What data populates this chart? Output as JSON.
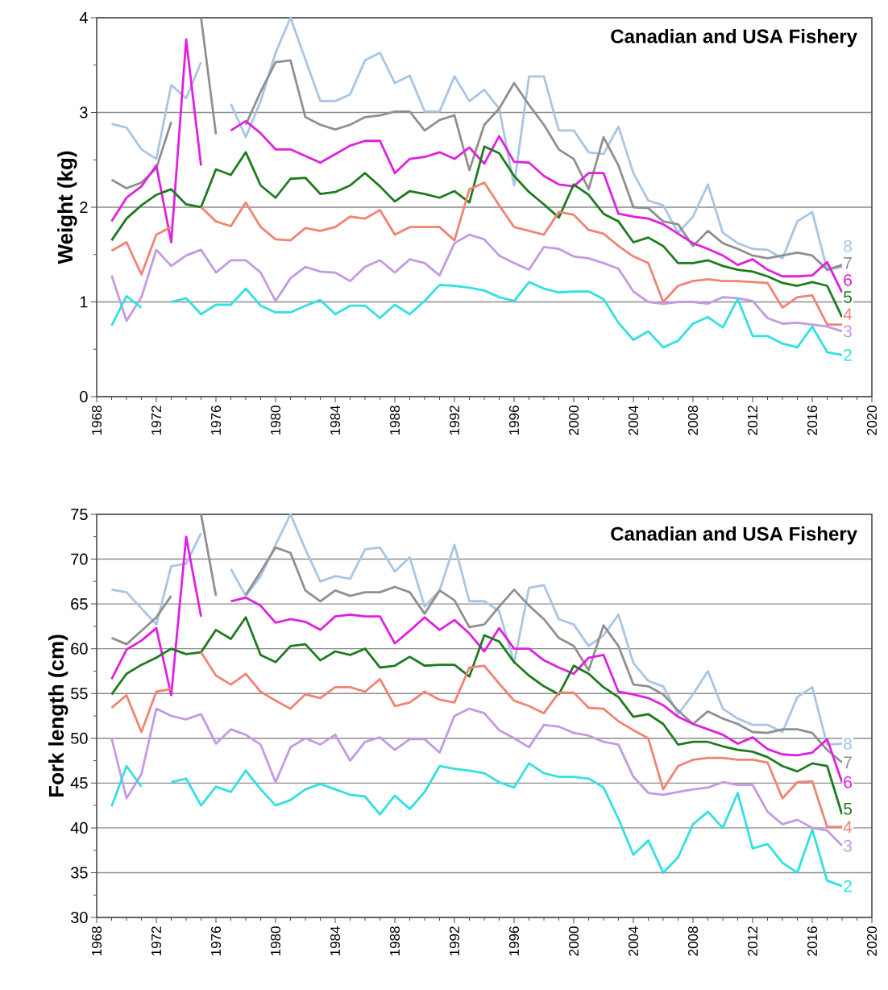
{
  "chart_data": [
    {
      "type": "line",
      "title": "Canadian and USA Fishery",
      "ylabel": "Weight  (kg)",
      "x": [
        1969,
        1970,
        1971,
        1972,
        1973,
        1974,
        1975,
        1976,
        1977,
        1978,
        1979,
        1980,
        1981,
        1982,
        1983,
        1984,
        1985,
        1986,
        1987,
        1988,
        1989,
        1990,
        1991,
        1992,
        1993,
        1994,
        1995,
        1996,
        1997,
        1998,
        1999,
        2000,
        2001,
        2002,
        2003,
        2004,
        2005,
        2006,
        2007,
        2008,
        2009,
        2010,
        2011,
        2012,
        2013,
        2014,
        2015,
        2016,
        2017,
        2018
      ],
      "xlim": [
        1968,
        2020
      ],
      "xticks": [
        1968,
        1972,
        1976,
        1980,
        1984,
        1988,
        1992,
        1996,
        2000,
        2004,
        2008,
        2012,
        2016,
        2020
      ],
      "ylim": [
        0,
        4
      ],
      "yticks": [
        0,
        1,
        2,
        3,
        4
      ],
      "grid": "y",
      "series": [
        {
          "name": "2",
          "color": "#33e0e0",
          "values": [
            0.75,
            1.06,
            0.94,
            null,
            1.0,
            1.04,
            0.87,
            0.97,
            0.97,
            1.14,
            0.96,
            0.89,
            0.89,
            0.96,
            1.02,
            0.87,
            0.96,
            0.96,
            0.83,
            0.97,
            0.87,
            1.01,
            1.18,
            1.17,
            1.15,
            1.12,
            1.05,
            1.01,
            1.21,
            1.14,
            1.1,
            1.11,
            1.11,
            1.03,
            0.78,
            0.6,
            0.69,
            0.52,
            0.59,
            0.77,
            0.84,
            0.73,
            1.03,
            0.64,
            0.64,
            0.56,
            0.52,
            0.74,
            0.47,
            0.44
          ]
        },
        {
          "name": "3",
          "color": "#c49ae0",
          "values": [
            1.28,
            0.8,
            1.05,
            1.55,
            1.38,
            1.49,
            1.55,
            1.31,
            1.44,
            1.44,
            1.31,
            1.01,
            1.25,
            1.37,
            1.32,
            1.31,
            1.22,
            1.37,
            1.44,
            1.31,
            1.45,
            1.41,
            1.28,
            1.62,
            1.71,
            1.66,
            1.49,
            1.41,
            1.34,
            1.58,
            1.56,
            1.48,
            1.46,
            1.41,
            1.35,
            1.11,
            1.0,
            0.98,
            1.0,
            1.0,
            0.98,
            1.05,
            1.04,
            1.01,
            0.83,
            0.77,
            0.78,
            0.76,
            0.74,
            0.69
          ]
        },
        {
          "name": "4",
          "color": "#f08474",
          "values": [
            1.54,
            1.63,
            1.29,
            1.71,
            1.79,
            null,
            2.0,
            1.85,
            1.8,
            2.05,
            1.79,
            1.66,
            1.65,
            1.78,
            1.75,
            1.79,
            1.9,
            1.88,
            1.97,
            1.71,
            1.79,
            1.79,
            1.79,
            1.65,
            2.19,
            2.26,
            2.02,
            1.79,
            1.75,
            1.71,
            1.95,
            1.92,
            1.76,
            1.72,
            1.59,
            1.48,
            1.41,
            1.0,
            1.17,
            1.22,
            1.24,
            1.22,
            1.22,
            1.21,
            1.2,
            0.94,
            1.05,
            1.07,
            0.76,
            0.76
          ]
        },
        {
          "name": "5",
          "color": "#1e7b1e",
          "values": [
            1.65,
            1.88,
            2.02,
            2.13,
            2.19,
            2.03,
            2.0,
            2.4,
            2.34,
            2.58,
            2.23,
            2.1,
            2.3,
            2.31,
            2.14,
            2.16,
            2.23,
            2.36,
            2.22,
            2.06,
            2.17,
            2.14,
            2.1,
            2.17,
            2.05,
            2.64,
            2.57,
            2.33,
            2.16,
            2.03,
            1.89,
            2.24,
            2.13,
            1.93,
            1.85,
            1.63,
            1.68,
            1.59,
            1.41,
            1.41,
            1.44,
            1.38,
            1.34,
            1.32,
            1.27,
            1.2,
            1.17,
            1.21,
            1.17,
            0.84
          ]
        },
        {
          "name": "6",
          "color": "#e020e0",
          "values": [
            1.85,
            2.1,
            2.22,
            2.44,
            1.63,
            3.77,
            2.44,
            null,
            2.81,
            2.91,
            2.78,
            2.61,
            2.61,
            2.54,
            2.47,
            2.56,
            2.65,
            2.7,
            2.7,
            2.36,
            2.51,
            2.53,
            2.58,
            2.51,
            2.63,
            2.46,
            2.75,
            2.48,
            2.47,
            2.33,
            2.24,
            2.22,
            2.36,
            2.36,
            1.93,
            1.9,
            1.88,
            1.82,
            1.72,
            1.62,
            1.56,
            1.49,
            1.39,
            1.45,
            1.34,
            1.27,
            1.27,
            1.28,
            1.42,
            1.1
          ]
        },
        {
          "name": "7",
          "color": "#909090",
          "values": [
            2.29,
            2.2,
            2.26,
            2.41,
            2.9,
            null,
            4.0,
            2.77,
            null,
            2.87,
            3.22,
            3.53,
            3.55,
            2.95,
            2.87,
            2.82,
            2.87,
            2.95,
            2.97,
            3.01,
            3.01,
            2.81,
            2.92,
            2.97,
            2.39,
            2.87,
            3.04,
            3.31,
            3.08,
            2.87,
            2.61,
            2.51,
            2.19,
            2.74,
            2.44,
            2.0,
            1.99,
            1.85,
            1.82,
            1.59,
            1.75,
            1.62,
            1.56,
            1.49,
            1.46,
            1.49,
            1.52,
            1.49,
            1.34,
            1.39
          ]
        },
        {
          "name": "8",
          "color": "#a8c6e4",
          "values": [
            2.88,
            2.84,
            2.61,
            2.51,
            3.29,
            3.15,
            3.53,
            null,
            3.09,
            2.74,
            3.12,
            3.63,
            4.0,
            3.56,
            3.12,
            3.12,
            3.19,
            3.55,
            3.63,
            3.31,
            3.39,
            3.01,
            3.01,
            3.38,
            3.12,
            3.24,
            3.04,
            2.23,
            3.38,
            3.38,
            2.81,
            2.81,
            2.58,
            2.56,
            2.85,
            2.36,
            2.07,
            2.02,
            1.73,
            1.9,
            2.24,
            1.73,
            1.62,
            1.56,
            1.55,
            1.46,
            1.85,
            1.95,
            1.34,
            1.37
          ]
        }
      ]
    },
    {
      "type": "line",
      "title": "Canadian and USA Fishery",
      "ylabel": "Fork length  (cm)",
      "x": [
        1969,
        1970,
        1971,
        1972,
        1973,
        1974,
        1975,
        1976,
        1977,
        1978,
        1979,
        1980,
        1981,
        1982,
        1983,
        1984,
        1985,
        1986,
        1987,
        1988,
        1989,
        1990,
        1991,
        1992,
        1993,
        1994,
        1995,
        1996,
        1997,
        1998,
        1999,
        2000,
        2001,
        2002,
        2003,
        2004,
        2005,
        2006,
        2007,
        2008,
        2009,
        2010,
        2011,
        2012,
        2013,
        2014,
        2015,
        2016,
        2017,
        2018
      ],
      "xlim": [
        1968,
        2020
      ],
      "xticks": [
        1968,
        1972,
        1976,
        1980,
        1984,
        1988,
        1992,
        1996,
        2000,
        2004,
        2008,
        2012,
        2016,
        2020
      ],
      "ylim": [
        30,
        75
      ],
      "yticks": [
        30,
        35,
        40,
        45,
        50,
        55,
        60,
        65,
        70,
        75
      ],
      "grid": "y",
      "series": [
        {
          "name": "2",
          "color": "#33e0e0",
          "values": [
            42.4,
            46.9,
            44.6,
            null,
            45.1,
            45.5,
            42.5,
            44.6,
            44.0,
            46.4,
            44.3,
            42.5,
            43.1,
            44.3,
            44.9,
            44.3,
            43.7,
            43.5,
            41.5,
            43.6,
            42.1,
            44.0,
            46.9,
            46.6,
            46.4,
            46.1,
            45.1,
            44.5,
            47.2,
            46.1,
            45.7,
            45.7,
            45.5,
            44.5,
            41.0,
            37.0,
            38.6,
            35.0,
            36.7,
            40.4,
            41.8,
            40.0,
            43.9,
            37.7,
            38.2,
            36.1,
            35.0,
            39.8,
            34.1,
            33.5
          ]
        },
        {
          "name": "3",
          "color": "#c49ae0",
          "values": [
            50.0,
            43.3,
            46.0,
            53.3,
            52.5,
            52.1,
            52.7,
            49.4,
            51.0,
            50.4,
            49.3,
            45.1,
            49.0,
            50.0,
            49.3,
            50.4,
            47.5,
            49.6,
            50.1,
            48.7,
            49.9,
            49.9,
            48.4,
            52.5,
            53.3,
            52.8,
            50.9,
            50.0,
            49.0,
            51.5,
            51.3,
            50.6,
            50.3,
            49.6,
            49.3,
            45.7,
            43.9,
            43.7,
            44.0,
            44.3,
            44.5,
            45.1,
            44.8,
            44.8,
            41.8,
            40.4,
            40.9,
            40.0,
            39.7,
            38.0
          ]
        },
        {
          "name": "4",
          "color": "#f08474",
          "values": [
            53.4,
            54.8,
            50.7,
            55.2,
            55.5,
            null,
            59.6,
            57.0,
            56.0,
            57.2,
            55.2,
            54.2,
            53.3,
            54.9,
            54.5,
            55.7,
            55.7,
            55.2,
            56.6,
            53.6,
            54.0,
            55.2,
            54.3,
            54.0,
            57.9,
            58.1,
            56.1,
            54.2,
            53.6,
            52.8,
            55.1,
            55.1,
            53.4,
            53.3,
            51.9,
            50.9,
            50.0,
            44.3,
            46.9,
            47.6,
            47.8,
            47.8,
            47.6,
            47.6,
            47.3,
            43.3,
            45.1,
            45.2,
            40.1,
            40.1
          ]
        },
        {
          "name": "5",
          "color": "#1e7b1e",
          "values": [
            54.9,
            57.2,
            58.2,
            59.0,
            60.0,
            59.4,
            59.6,
            62.1,
            61.1,
            63.5,
            59.3,
            58.5,
            60.3,
            60.5,
            58.7,
            59.7,
            59.3,
            60.0,
            57.9,
            58.1,
            59.1,
            58.1,
            58.2,
            58.2,
            56.9,
            61.5,
            60.8,
            58.5,
            57.0,
            55.8,
            54.9,
            58.1,
            57.2,
            55.7,
            54.6,
            52.4,
            52.7,
            51.6,
            49.3,
            49.6,
            49.6,
            49.1,
            48.7,
            48.5,
            47.9,
            46.9,
            46.3,
            47.2,
            46.9,
            41.5
          ]
        },
        {
          "name": "6",
          "color": "#e020e0",
          "values": [
            56.6,
            59.9,
            60.9,
            62.3,
            54.8,
            72.5,
            63.6,
            null,
            65.3,
            65.7,
            64.8,
            62.9,
            63.3,
            63.0,
            62.1,
            63.6,
            63.8,
            63.6,
            63.6,
            60.6,
            62.0,
            63.5,
            62.1,
            63.2,
            61.7,
            59.7,
            62.3,
            60.0,
            60.0,
            58.7,
            57.9,
            57.2,
            59.0,
            59.3,
            55.2,
            54.9,
            54.5,
            53.7,
            52.4,
            51.6,
            51.0,
            50.4,
            49.4,
            50.1,
            48.8,
            48.2,
            48.1,
            48.4,
            49.9,
            45.1
          ]
        },
        {
          "name": "7",
          "color": "#909090",
          "values": [
            61.2,
            60.5,
            62.0,
            63.5,
            65.9,
            null,
            75.0,
            65.9,
            null,
            66.0,
            68.6,
            71.3,
            70.7,
            66.5,
            65.3,
            66.5,
            65.9,
            66.3,
            66.3,
            66.9,
            66.3,
            63.9,
            66.5,
            65.4,
            62.4,
            62.7,
            64.7,
            66.6,
            64.8,
            63.3,
            61.2,
            60.3,
            57.6,
            62.6,
            60.3,
            56.0,
            55.8,
            54.9,
            53.1,
            51.6,
            53.0,
            52.2,
            51.6,
            50.7,
            50.6,
            51.0,
            51.0,
            50.6,
            48.7,
            47.3
          ]
        },
        {
          "name": "8",
          "color": "#a8c6e4",
          "values": [
            66.6,
            66.3,
            64.5,
            62.7,
            69.2,
            69.5,
            72.9,
            null,
            68.9,
            65.9,
            68.1,
            71.6,
            75.0,
            71.1,
            67.5,
            68.1,
            67.8,
            71.1,
            71.3,
            68.6,
            70.2,
            64.7,
            66.5,
            71.6,
            65.3,
            65.3,
            64.2,
            58.4,
            66.8,
            67.1,
            63.3,
            62.7,
            60.3,
            61.5,
            63.8,
            58.4,
            56.4,
            55.8,
            52.7,
            54.9,
            57.5,
            53.3,
            52.2,
            51.5,
            51.5,
            50.7,
            54.6,
            55.7,
            49.3,
            49.4
          ]
        }
      ]
    }
  ]
}
